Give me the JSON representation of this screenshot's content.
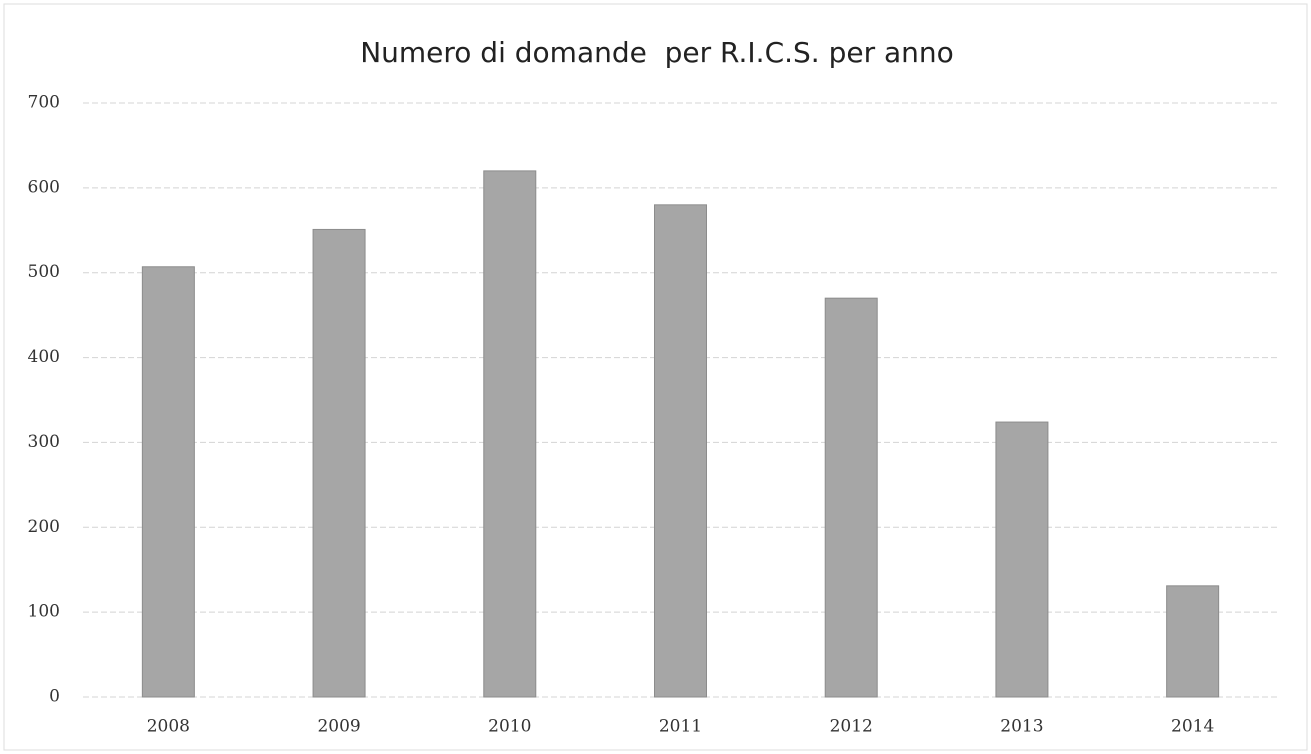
{
  "chart_data": {
    "type": "bar",
    "title": "Numero di domande  per R.I.C.S. per anno",
    "categories": [
      "2008",
      "2009",
      "2010",
      "2011",
      "2012",
      "2013",
      "2014"
    ],
    "values": [
      507,
      551,
      620,
      580,
      470,
      324,
      131
    ],
    "color": "#a6a6a6",
    "ylim": [
      0,
      700
    ],
    "yticks": [
      0,
      100,
      200,
      300,
      400,
      500,
      600,
      700
    ],
    "grid": true
  }
}
